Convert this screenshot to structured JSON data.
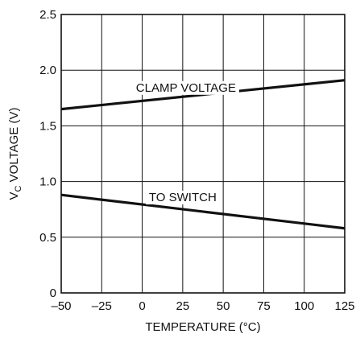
{
  "chart_data": {
    "type": "line",
    "xlabel": "TEMPERATURE (°C)",
    "ylabel": {
      "prefix": "V",
      "subscript": "C",
      "suffix": " VOLTAGE (V)"
    },
    "xlim": [
      -50,
      125
    ],
    "ylim": [
      0,
      2.5
    ],
    "x_ticks": [
      -50,
      -25,
      0,
      25,
      50,
      75,
      100,
      125
    ],
    "x_tick_labels": [
      "–50",
      "–25",
      "0",
      "25",
      "50",
      "75",
      "100",
      "125"
    ],
    "y_ticks": [
      0,
      0.5,
      1.0,
      1.5,
      2.0,
      2.5
    ],
    "y_tick_labels": [
      "0",
      "0.5",
      "1.0",
      "1.5",
      "2.0",
      "2.5"
    ],
    "grid": true,
    "series": [
      {
        "name": "CLAMP VOLTAGE",
        "x": [
          -50,
          125
        ],
        "y": [
          1.65,
          1.91
        ]
      },
      {
        "name": "TO SWITCH",
        "x": [
          -50,
          125
        ],
        "y": [
          0.88,
          0.58
        ]
      }
    ]
  }
}
